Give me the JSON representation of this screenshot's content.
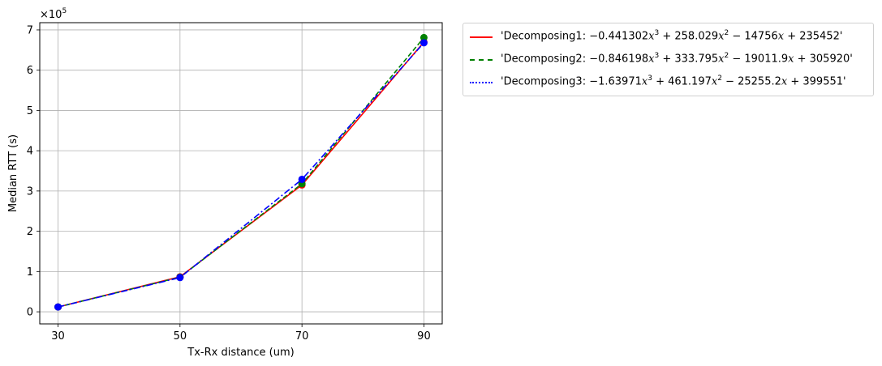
{
  "chart_data": {
    "type": "line",
    "x": [
      30,
      50,
      70,
      90
    ],
    "xticks": [
      "30",
      "50",
      "70",
      "90"
    ],
    "yticks": [
      "0",
      "1",
      "2",
      "3",
      "4",
      "5",
      "6",
      "7"
    ],
    "multiplier": "×10",
    "multiplier_exp": "5",
    "xlabel": "Tx-Rx distance (um)",
    "ylabel": "Median RTT (s)",
    "xlim": [
      27,
      93
    ],
    "ylim": [
      -30000,
      718000
    ],
    "grid": true,
    "legend_position": "outside-top-right",
    "series": [
      {
        "name": "'Decomposing1: −0.441302x³ + 258.029x² − 14756x + 235452'",
        "legend_parts": {
          "prefix": "'Decomposing1: ",
          "c3": "−0.441302",
          "c2": " + 258.029",
          "c1": " − 14756",
          "c0": " + 235452",
          "suffix": "'"
        },
        "values": [
          12000,
          87000,
          315000,
          670000
        ],
        "color": "#ff0000",
        "line_style": "solid"
      },
      {
        "name": "'Decomposing2: −0.846198x³ + 333.795x² − 19011.9x + 305920'",
        "legend_parts": {
          "prefix": "'Decomposing2: ",
          "c3": "−0.846198",
          "c2": " + 333.795",
          "c1": " − 19011.9",
          "c0": " + 305920",
          "suffix": "'"
        },
        "values": [
          12000,
          86000,
          318000,
          681000
        ],
        "color": "#008000",
        "line_style": "dashed"
      },
      {
        "name": "'Decomposing3: −1.63971x³ + 461.197x² − 25255.2x + 399551'",
        "legend_parts": {
          "prefix": "'Decomposing3: ",
          "c3": "−1.63971",
          "c2": " + 461.197",
          "c1": " − 25255.2",
          "c0": " + 399551",
          "suffix": "'"
        },
        "values": [
          12000,
          85000,
          329000,
          668000
        ],
        "color": "#0000ff",
        "line_style": "dashdot"
      }
    ]
  }
}
